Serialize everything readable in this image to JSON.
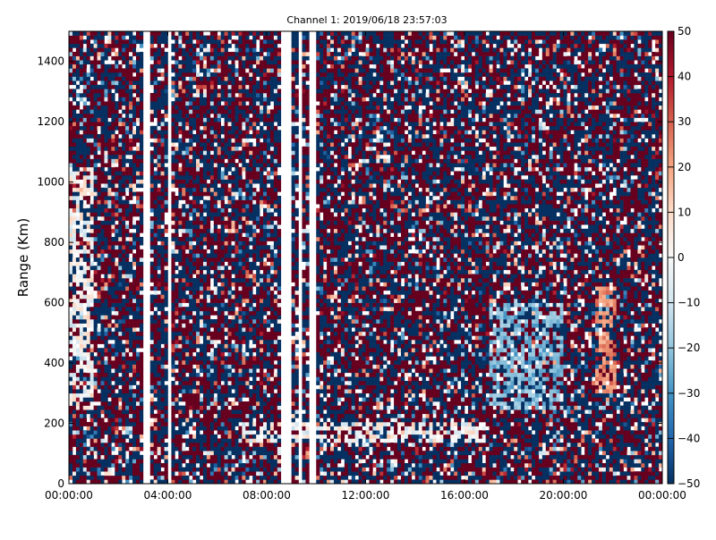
{
  "chart_data": {
    "type": "heatmap",
    "title": "Channel 1: 2019/06/18 23:57:03",
    "xlabel": "",
    "ylabel": "Range (Km)",
    "x_range": [
      "00:00:00",
      "24:00:00"
    ],
    "x_ticks": [
      "00:00:00",
      "04:00:00",
      "08:00:00",
      "12:00:00",
      "16:00:00",
      "20:00:00",
      "00:00:00"
    ],
    "x_tick_hours": [
      0,
      4,
      8,
      12,
      16,
      20,
      24
    ],
    "ylim": [
      0,
      1500
    ],
    "y_ticks": [
      0,
      200,
      400,
      600,
      800,
      1000,
      1200,
      1400
    ],
    "colorbar": {
      "colormap": "RdBu_r",
      "range": [
        -50,
        50
      ],
      "ticks": [
        50,
        40,
        30,
        20,
        10,
        0,
        -10,
        -20,
        -30,
        -40,
        -50
      ],
      "low_color": "#053061",
      "mid_color": "#f7f7f7",
      "high_color": "#67001f"
    },
    "data_gaps_hours": [
      [
        3.05,
        3.25
      ],
      [
        4.0,
        4.15
      ],
      [
        8.55,
        8.95
      ],
      [
        9.3,
        9.45
      ],
      [
        9.75,
        10.0
      ]
    ],
    "features": [
      {
        "description": "low-velocity echo band",
        "hours": [
          7.0,
          16.8
        ],
        "range_km": [
          140,
          200
        ]
      },
      {
        "description": "blue arc feature",
        "hours": [
          17.0,
          20.0
        ],
        "range_km": [
          250,
          600
        ]
      },
      {
        "description": "light echo near start",
        "hours": [
          0.0,
          1.0
        ],
        "range_km": [
          250,
          1050
        ]
      },
      {
        "description": "red streak",
        "hours": [
          21.3,
          22.2
        ],
        "range_km": [
          300,
          650
        ]
      }
    ],
    "grid": false
  }
}
